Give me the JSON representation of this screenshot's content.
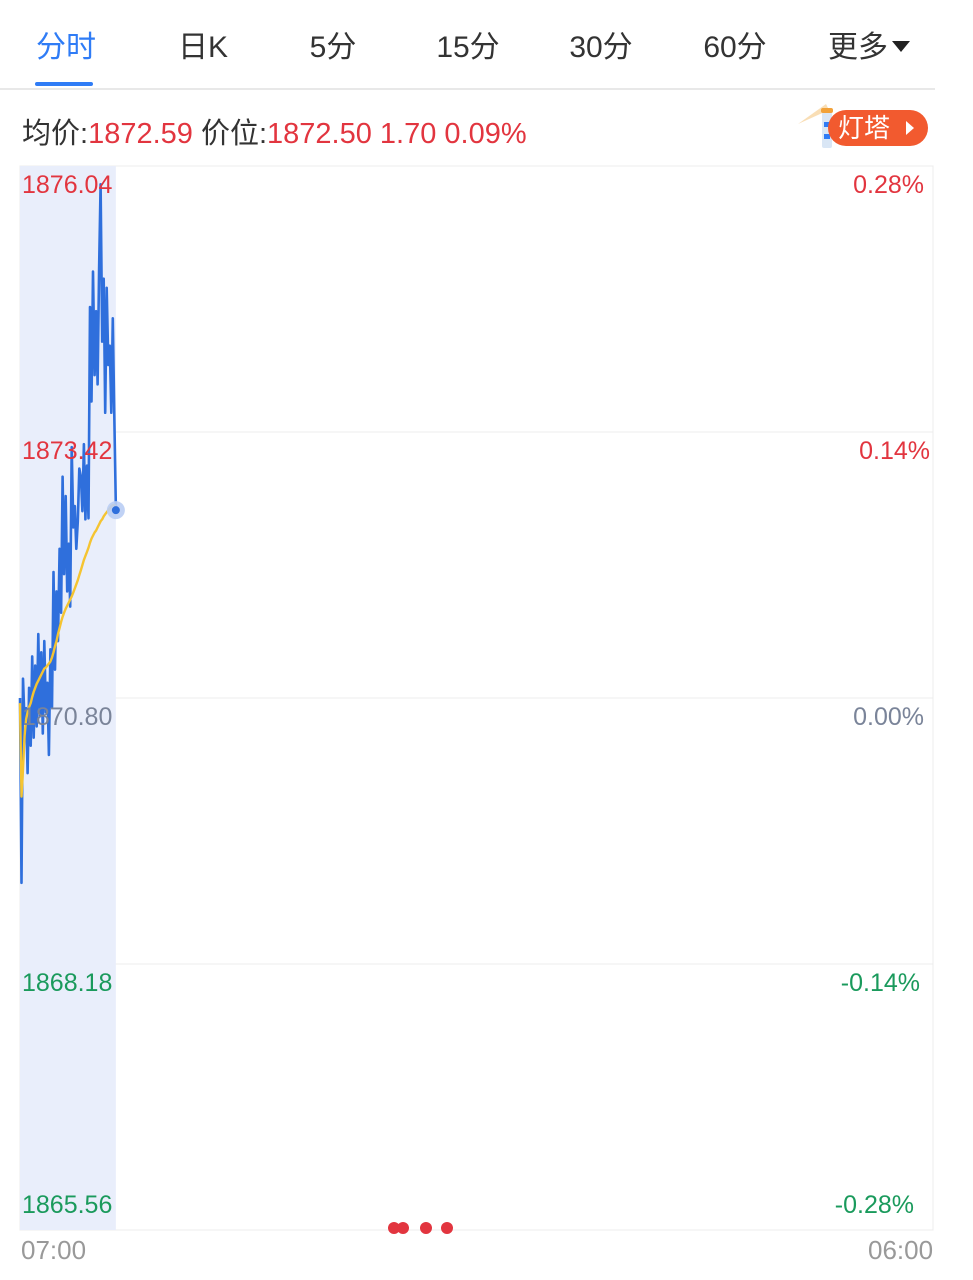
{
  "tabs": [
    {
      "label": "分时",
      "active": true
    },
    {
      "label": "日K"
    },
    {
      "label": "5分"
    },
    {
      "label": "15分"
    },
    {
      "label": "30分"
    },
    {
      "label": "60分"
    },
    {
      "label": "更多"
    }
  ],
  "info": {
    "avg_label": "均价:",
    "avg_value": "1872.59",
    "price_label": "价位:",
    "price_value": "1872.50",
    "change": "1.70",
    "change_pct": "0.09%"
  },
  "lighthouse": {
    "label": "灯塔",
    "icon": "lighthouse-icon"
  },
  "colors": {
    "up": "#e2353f",
    "down": "#1a9a5c",
    "neutral": "#7a8499",
    "price_line": "#2f6fdc",
    "avg_line": "#f5c431",
    "fill": "#e9eefb"
  },
  "chart_data": {
    "type": "line",
    "ylim": [
      1865.56,
      1876.04
    ],
    "y_ticks": [
      "1876.04",
      "1873.42",
      "1870.80",
      "1868.18",
      "1865.56"
    ],
    "y_right_ticks": [
      "0.28%",
      "0.14%",
      "0.00%",
      "-0.14%",
      "-0.28%"
    ],
    "x_ticks": [
      "07:00",
      "06:00"
    ],
    "series": [
      {
        "key": "price",
        "color": "#2f6fdc",
        "values": [
          1870.8,
          1868.98,
          1870.99,
          1870.55,
          1870.7,
          1870.06,
          1870.9,
          1870.33,
          1871.21,
          1870.41,
          1871.12,
          1870.52,
          1871.43,
          1870.62,
          1871.25,
          1870.45,
          1871.36,
          1870.66,
          1870.95,
          1870.24,
          1871.28,
          1870.71,
          1872.04,
          1871.08,
          1871.85,
          1871.36,
          1872.27,
          1871.64,
          1872.98,
          1872.02,
          1872.79,
          1871.85,
          1872.32,
          1871.7,
          1873.27,
          1872.48,
          1872.69,
          1872.27,
          1872.54,
          1873.06,
          1872.98,
          1872.64,
          1873.3,
          1872.56,
          1873.09,
          1872.57,
          1874.65,
          1873.72,
          1875.0,
          1873.98,
          1874.61,
          1873.89,
          1875.03,
          1875.86,
          1874.31,
          1874.93,
          1873.61,
          1874.84,
          1874.08,
          1874.27,
          1873.61,
          1874.54,
          1873.58,
          1872.65
        ]
      },
      {
        "key": "avg",
        "color": "#f5c431",
        "values": [
          1870.75,
          1869.83,
          1870.1,
          1870.43,
          1870.59,
          1870.66,
          1870.71,
          1870.75,
          1870.81,
          1870.86,
          1870.9,
          1870.94,
          1870.97,
          1871.0,
          1871.03,
          1871.06,
          1871.09,
          1871.1,
          1871.12,
          1871.14,
          1871.16,
          1871.2,
          1871.25,
          1871.31,
          1871.36,
          1871.43,
          1871.49,
          1871.55,
          1871.6,
          1871.64,
          1871.68,
          1871.71,
          1871.74,
          1871.77,
          1871.8,
          1871.84,
          1871.88,
          1871.92,
          1871.96,
          1872.01,
          1872.06,
          1872.11,
          1872.16,
          1872.2,
          1872.24,
          1872.28,
          1872.33,
          1872.37,
          1872.4,
          1872.43,
          1872.45,
          1872.48,
          1872.51,
          1872.54,
          1872.56,
          1872.59,
          1872.61,
          1872.63,
          1872.65,
          1872.67,
          1872.69,
          1872.7,
          1872.7,
          1872.69
        ]
      }
    ]
  },
  "pager": {
    "count": 3,
    "active": 0
  }
}
